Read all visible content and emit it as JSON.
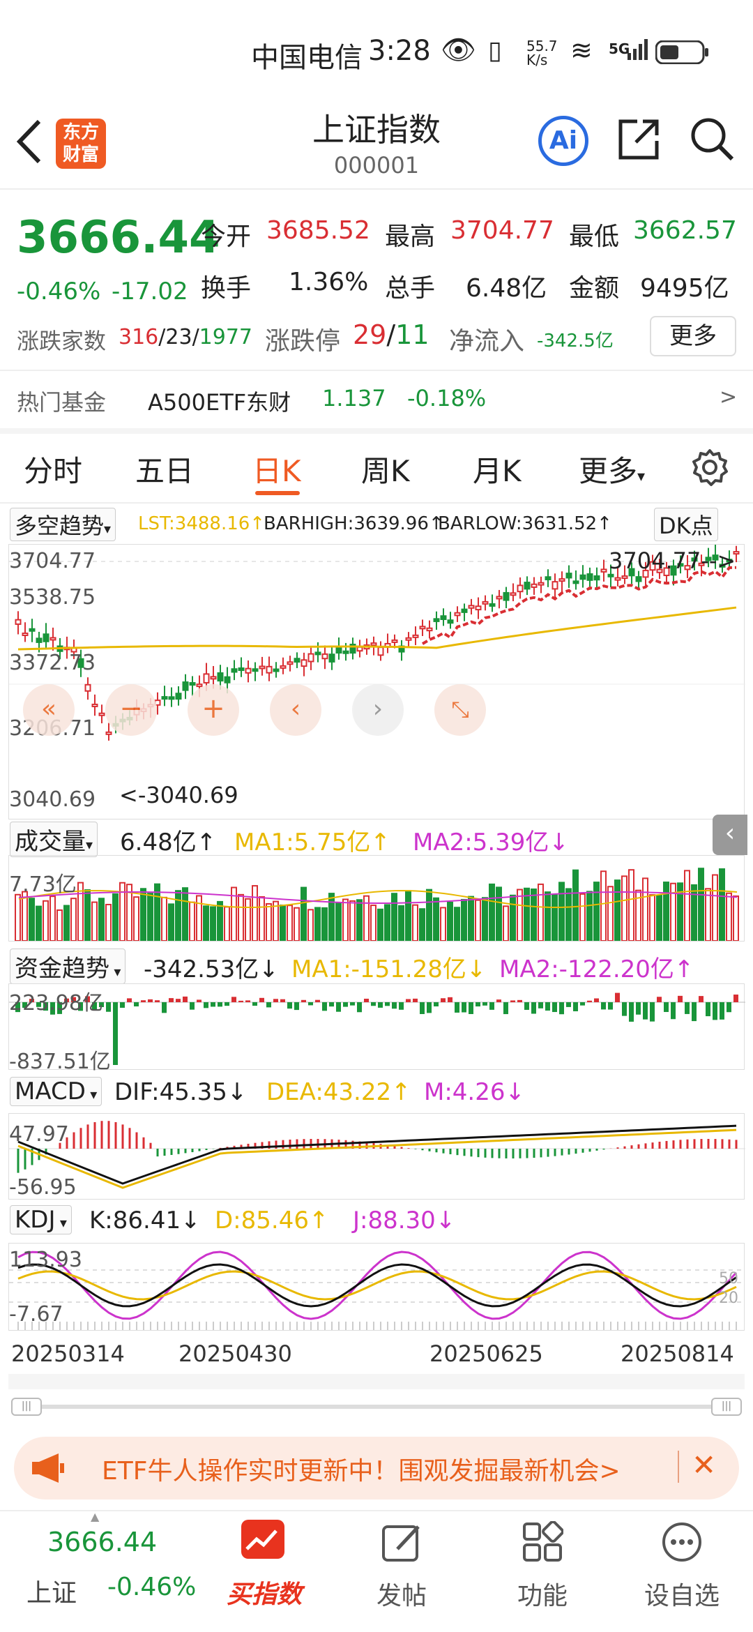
{
  "status": {
    "carrier": "中国电信",
    "time": "3:28",
    "speed_top": "55.7",
    "speed_bottom": "K/s",
    "network": "5G"
  },
  "header": {
    "logo_top": "东方",
    "logo_bottom": "财富",
    "title": "上证指数",
    "code": "000001",
    "ai_label": "Ai"
  },
  "quote": {
    "price": "3666.44",
    "change_pct": "-0.46%",
    "change": "-17.02",
    "open_label": "今开",
    "open": "3685.52",
    "high_label": "最高",
    "high": "3704.77",
    "low_label": "最低",
    "low": "3662.57",
    "turnover_label": "换手",
    "turnover": "1.36%",
    "volume_label": "总手",
    "volume": "6.48亿",
    "amount_label": "金额",
    "amount": "9495亿",
    "breadth_label": "涨跌家数",
    "breadth_up": "316",
    "breadth_flat": "23",
    "breadth_down": "1977",
    "limit_label": "涨跌停",
    "limit_up": "29",
    "limit_down": "11",
    "netflow_label": "净流入",
    "netflow": "-342.5亿",
    "more_label": "更多"
  },
  "hotfund": {
    "label": "热门基金",
    "name": "A500ETF东财",
    "price": "1.137",
    "pct": "-0.18%",
    "arrow": ">"
  },
  "tabs": [
    "分时",
    "五日",
    "日K",
    "周K",
    "月K",
    "更多"
  ],
  "active_tab": 2,
  "kline": {
    "indicator": "多空趋势",
    "lst": "LST:3488.16↑",
    "barhigh": "BARHIGH:3639.96↑",
    "barlow": "BARLOW:3631.52↑",
    "dk_label": "DK点",
    "y_ticks": [
      "3704.77",
      "3538.75",
      "3372.73",
      "3206.71",
      "3040.69"
    ],
    "max_label": "3704.77-->",
    "min_label": "<-3040.69"
  },
  "volume": {
    "label": "成交量",
    "value": "6.48亿↑",
    "ma1": "MA1:5.75亿↑",
    "ma2": "MA2:5.39亿↓",
    "tick": "7.73亿"
  },
  "fund": {
    "label": "资金趋势",
    "value": "-342.53亿↓",
    "ma1": "MA1:-151.28亿↓",
    "ma2": "MA2:-122.20亿↑",
    "tick_top": "223.98亿",
    "tick_bottom": "-837.51亿"
  },
  "macd": {
    "label": "MACD",
    "dif": "DIF:45.35↓",
    "dea": "DEA:43.22↑",
    "m": "M:4.26↓",
    "tick_top": "47.97",
    "tick_bottom": "-56.95"
  },
  "kdj": {
    "label": "KDJ",
    "k": "K:86.41↓",
    "d": "D:85.46↑",
    "j": "J:88.30↓",
    "tick_top": "113.93",
    "tick_bottom": "-7.67",
    "r50": "50",
    "r20": "20"
  },
  "dates": [
    "20250314",
    "20250430",
    "20250625",
    "20250814"
  ],
  "banner": {
    "text": "ETF牛人操作实时更新中！围观发掘最新机会>"
  },
  "bottom": {
    "price": "3666.44",
    "name": "上证",
    "pct": "-0.46%",
    "items": [
      "买指数",
      "发帖",
      "功能",
      "设自选"
    ]
  },
  "colors": {
    "up": "#d92e33",
    "down": "#19953a",
    "accent": "#ef5a23",
    "ma1": "#e8b800",
    "ma2": "#cc33cc"
  }
}
